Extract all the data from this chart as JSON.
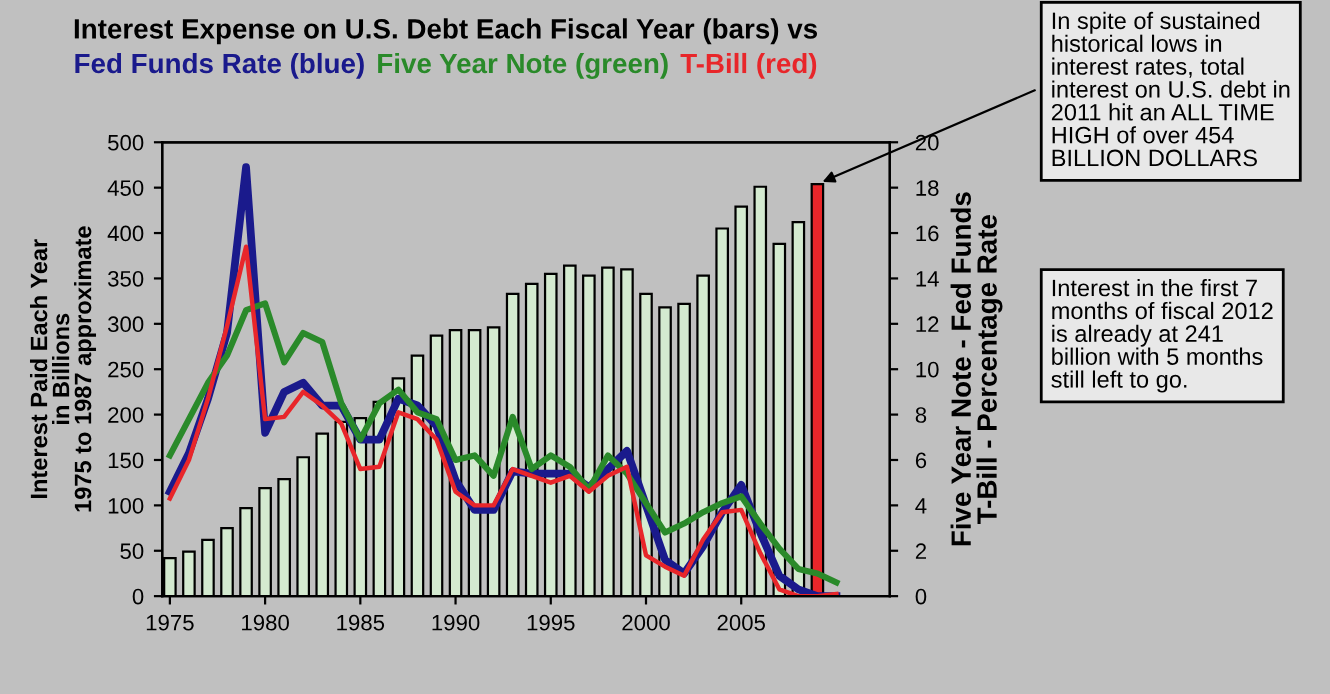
{
  "chart_data": {
    "type": "bar",
    "title": "Interest Expense on U.S. Debt Each Fiscal Year (bars) vs",
    "ylabel": "Interest Paid Each Year\nin Billions\n1975 to 1987 approximate",
    "y2label": "Five Year Note - Fed Funds\nT-Bill - Percentage Rate",
    "xlim": [
      1974.6,
      2012.8
    ],
    "xticks": [
      1975,
      1980,
      1985,
      1990,
      1995,
      2000,
      2005
    ],
    "ylim": [
      0,
      500
    ],
    "yticks": [
      0,
      50,
      100,
      150,
      200,
      250,
      300,
      350,
      400,
      450,
      500
    ],
    "y2lim": [
      0,
      20
    ],
    "y2ticks": [
      0,
      2,
      4,
      6,
      8,
      10,
      12,
      14,
      16,
      18,
      20
    ],
    "grid": false,
    "legend": false,
    "marker": "none",
    "series": [
      {
        "x": [
          1975,
          1976,
          1977,
          1978,
          1979,
          1980,
          1981,
          1982,
          1983,
          1984,
          1985,
          1986,
          1987,
          1988,
          1989,
          1990,
          1991,
          1992,
          1993,
          1994,
          1995,
          1996,
          1997,
          1998,
          1999,
          2000,
          2001,
          2002,
          2003,
          2004,
          2005,
          2006,
          2007,
          2008,
          2009
        ],
        "values": [
          42,
          49,
          62,
          75,
          97,
          119,
          129,
          153,
          179,
          192,
          196,
          214,
          240,
          265,
          287,
          293,
          293,
          296,
          333,
          344,
          355,
          364,
          353,
          362,
          360,
          333,
          318,
          322,
          353,
          405,
          429,
          451,
          388,
          412,
          454
        ],
        "colors": [
          "#d4ead0",
          "#d4ead0",
          "#d4ead0",
          "#d4ead0",
          "#d4ead0",
          "#d4ead0",
          "#d4ead0",
          "#d4ead0",
          "#d4ead0",
          "#d4ead0",
          "#d4ead0",
          "#d4ead0",
          "#d4ead0",
          "#d4ead0",
          "#d4ead0",
          "#d4ead0",
          "#d4ead0",
          "#d4ead0",
          "#d4ead0",
          "#d4ead0",
          "#d4ead0",
          "#d4ead0",
          "#d4ead0",
          "#d4ead0",
          "#d4ead0",
          "#d4ead0",
          "#d4ead0",
          "#d4ead0",
          "#d4ead0",
          "#d4ead0",
          "#d4ead0",
          "#d4ead0",
          "#d4ead0",
          "#d4ead0",
          "#e8262a"
        ]
      },
      {
        "type": "line",
        "axis": "y2",
        "name": "Fed Funds Rate (blue)",
        "color": "#1a1a8c",
        "x": [
          1975,
          1976,
          1977,
          1978,
          1979,
          1980,
          1981,
          1982,
          1983,
          1984,
          1985,
          1986,
          1987,
          1988,
          1989,
          1990,
          1991,
          1992,
          1993,
          1994,
          1995,
          1996,
          1997,
          1998,
          1999,
          2000,
          2001,
          2002,
          2003,
          2004,
          2005,
          2006,
          2007,
          2008,
          2009,
          2010
        ],
        "values": [
          4.6,
          6.3,
          8.7,
          11.6,
          18.9,
          7.2,
          9.0,
          9.4,
          8.4,
          8.4,
          6.9,
          6.9,
          8.7,
          8.4,
          7.5,
          5.1,
          3.8,
          3.8,
          5.5,
          5.4,
          5.4,
          5.4,
          4.8,
          5.6,
          6.4,
          4.0,
          1.6,
          1.0,
          2.2,
          3.7,
          4.9,
          2.8,
          0.9,
          0.3,
          0,
          0
        ]
      },
      {
        "type": "line",
        "axis": "y2",
        "name": "Five Year Note (green)",
        "color": "#2a8a2a",
        "x": [
          1975,
          1976,
          1977,
          1978,
          1979,
          1980,
          1981,
          1982,
          1983,
          1984,
          1985,
          1986,
          1987,
          1988,
          1989,
          1990,
          1991,
          1992,
          1993,
          1994,
          1995,
          1996,
          1997,
          1998,
          1999,
          2000,
          2001,
          2002,
          2003,
          2004,
          2005,
          2006,
          2007,
          2008,
          2009,
          2010
        ],
        "values": [
          6.2,
          7.8,
          9.4,
          10.6,
          12.6,
          12.9,
          10.3,
          11.6,
          11.2,
          8.5,
          6.9,
          8.5,
          9.1,
          8.1,
          7.8,
          6.0,
          6.2,
          5.3,
          7.9,
          5.6,
          6.2,
          5.7,
          4.7,
          6.2,
          5.4,
          4.1,
          2.8,
          3.2,
          3.7,
          4.1,
          4.4,
          3.2,
          2.1,
          1.2,
          1.0,
          0.6
        ]
      },
      {
        "type": "line",
        "axis": "y2",
        "name": "T-Bill (red)",
        "color": "#e8262a",
        "x": [
          1975,
          1976,
          1977,
          1978,
          1979,
          1980,
          1981,
          1982,
          1983,
          1984,
          1985,
          1986,
          1987,
          1988,
          1989,
          1990,
          1991,
          1992,
          1993,
          1994,
          1995,
          1996,
          1997,
          1998,
          1999,
          2000,
          2001,
          2002,
          2003,
          2004,
          2005,
          2006,
          2007,
          2008,
          2009,
          2010
        ],
        "values": [
          4.3,
          6.0,
          8.7,
          11.9,
          15.4,
          7.8,
          7.9,
          9.0,
          8.4,
          7.6,
          5.6,
          5.7,
          8.1,
          7.8,
          6.9,
          4.6,
          4.0,
          4.0,
          5.6,
          5.3,
          5.0,
          5.3,
          4.6,
          5.3,
          5.7,
          1.8,
          1.3,
          0.9,
          2.5,
          3.7,
          3.8,
          1.9,
          0.3,
          0,
          0,
          0.1
        ]
      }
    ],
    "annotations": [
      {
        "text": "In spite of sustained\nhistorical lows in\ninterest rates, total\ninterest on U.S. debt in\n2011 hit an ALL TIME\nHIGH of over 454\nBILLION DOLLARS",
        "x": 2009,
        "y": 454
      },
      "Interest in the first 7\nmonths of fiscal 2012\nis already at 241\nbillion with 5 months\nstill left to go."
    ]
  }
}
